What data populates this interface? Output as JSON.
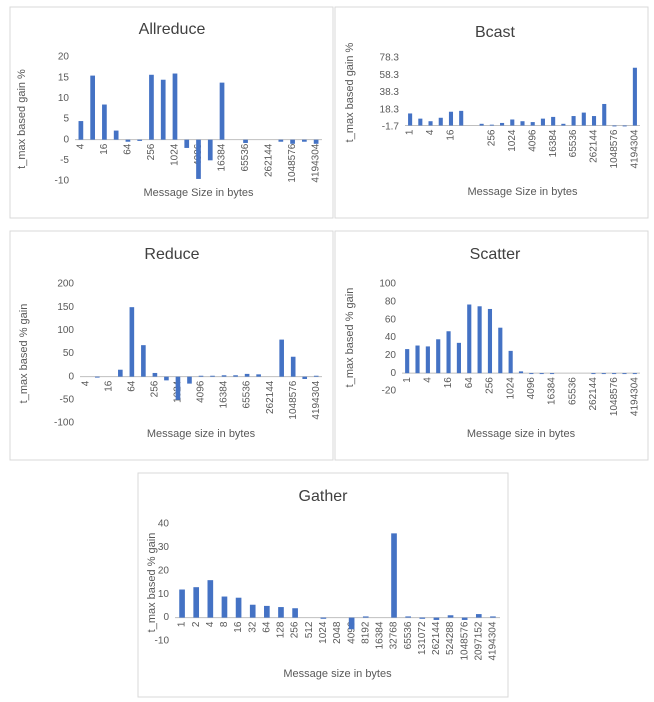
{
  "chart_data": [
    {
      "type": "bar",
      "title": "Allreduce",
      "x_label": "Message Size in bytes",
      "y_label": "t_max based gain %",
      "color": "#4472c4",
      "categories": [
        "4",
        null,
        "16",
        null,
        "64",
        null,
        "256",
        null,
        "1024",
        null,
        "4096",
        null,
        "16384",
        null,
        "65536",
        null,
        "262144",
        null,
        "1048576",
        null,
        "4194304"
      ],
      "values": [
        4.5,
        15.5,
        8.5,
        2.2,
        -0.5,
        -0.3,
        15.7,
        14.5,
        16,
        -2,
        -9.5,
        -5,
        13.8,
        0,
        -0.8,
        0,
        0,
        -0.5,
        -1,
        -0.5,
        -1
      ],
      "ylim": [
        -10,
        20
      ],
      "yticks": [
        -10,
        -5,
        0,
        5,
        10,
        15,
        20
      ]
    },
    {
      "type": "bar",
      "title": "Bcast",
      "x_label": "Message Size in bytes",
      "y_label": "t_max based gain %",
      "color": "#4472c4",
      "categories": [
        "1",
        null,
        "4",
        null,
        "16",
        null,
        null,
        null,
        "256",
        null,
        "1024",
        null,
        "4096",
        null,
        "16384",
        null,
        "65536",
        null,
        "262144",
        null,
        "1048576",
        null,
        "4194304"
      ],
      "values": [
        14,
        8,
        5,
        9,
        16,
        17,
        0,
        2,
        1,
        3,
        7,
        5,
        4,
        8,
        10,
        2,
        11,
        15,
        11,
        25,
        -1,
        -1,
        67
      ],
      "ylim": [
        -1.7,
        78.3
      ],
      "yticks": [
        -1.7,
        18.3,
        38.3,
        58.3,
        78.3
      ]
    },
    {
      "type": "bar",
      "title": "Reduce",
      "x_label": "Message size in bytes",
      "y_label": "t_max based % gain",
      "color": "#4472c4",
      "categories": [
        "4",
        null,
        "16",
        null,
        "64",
        null,
        "256",
        null,
        "1024",
        null,
        "4096",
        null,
        "16384",
        null,
        "65536",
        null,
        "262144",
        null,
        "1048576",
        null,
        "4194304"
      ],
      "values": [
        0,
        -2,
        0,
        15,
        150,
        68,
        8,
        -8,
        -50,
        -15,
        2,
        2,
        3,
        3,
        6,
        5,
        0,
        80,
        43,
        -5,
        2
      ],
      "ylim": [
        -100,
        200
      ],
      "yticks": [
        -100,
        -50,
        0,
        50,
        100,
        150,
        200
      ]
    },
    {
      "type": "bar",
      "title": "Scatter",
      "x_label": "Message size in bytes",
      "y_label": "t_max based % gain",
      "color": "#4472c4",
      "categories": [
        "1",
        null,
        "4",
        null,
        "16",
        null,
        "64",
        null,
        "256",
        null,
        "1024",
        null,
        "4096",
        null,
        "16384",
        null,
        "65536",
        null,
        "262144",
        null,
        "1048576",
        null,
        "4194304"
      ],
      "values": [
        27,
        31,
        30,
        38,
        47,
        34,
        77,
        75,
        72,
        51,
        25,
        2,
        -1,
        -1,
        -1,
        0,
        0,
        0,
        -1,
        -1,
        -1,
        -1,
        -1
      ],
      "ylim": [
        -20,
        100
      ],
      "yticks": [
        -20,
        0,
        20,
        40,
        60,
        80,
        100
      ]
    },
    {
      "type": "bar",
      "title": "Gather",
      "x_label": "Message size in bytes",
      "y_label": "t_max based % gain",
      "color": "#4472c4",
      "categories": [
        "1",
        "2",
        "4",
        "8",
        "16",
        "32",
        "64",
        "128",
        "256",
        "512",
        "1024",
        "2048",
        "4096",
        "8192",
        "16384",
        "32768",
        "65536",
        "131072",
        "262144",
        "524288",
        "1048576",
        "2097152",
        "4194304"
      ],
      "values": [
        12,
        13,
        16,
        9,
        8.5,
        5.5,
        5,
        4.5,
        4,
        0,
        -0.5,
        0,
        -5,
        0.5,
        0,
        36,
        0.5,
        -0.5,
        -1,
        1,
        -1,
        1.5,
        0.5
      ],
      "ylim": [
        -10,
        40
      ],
      "yticks": [
        -10,
        0,
        10,
        20,
        30,
        40
      ]
    }
  ]
}
